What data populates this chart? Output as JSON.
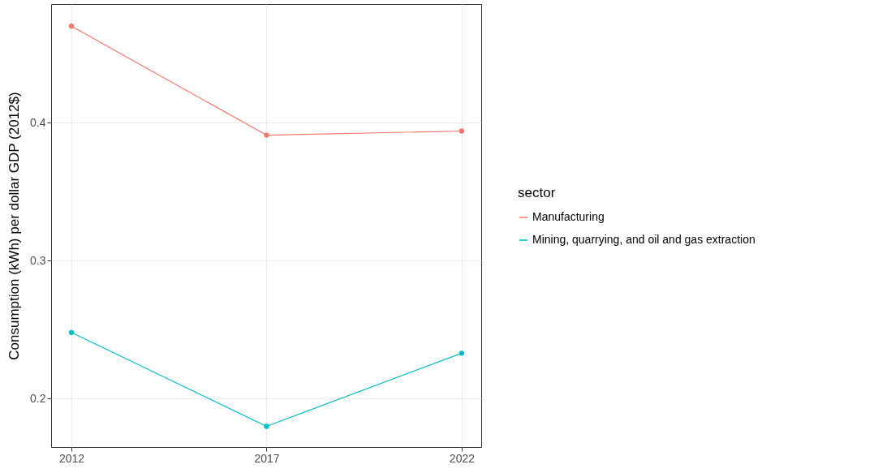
{
  "chart_data": {
    "type": "line",
    "ylabel": "Consumption (kWh) per dollar GDP (2012$)",
    "legend_title": "sector",
    "x": [
      2012,
      2017,
      2022
    ],
    "series": [
      {
        "name": "Manufacturing",
        "color": "#f8766d",
        "values": [
          0.47,
          0.391,
          0.394
        ]
      },
      {
        "name": "Mining, quarrying, and oil and gas extraction",
        "color": "#00bfc4",
        "values": [
          0.248,
          0.18,
          0.233
        ]
      }
    ],
    "xlim": [
      2011.48,
      2022.5
    ],
    "xticks": [
      2012,
      2017,
      2022
    ],
    "ylim": [
      0.165,
      0.486
    ],
    "yticks": [
      {
        "value": 0.2,
        "label": "0.2"
      },
      {
        "value": 0.3,
        "label": "0.3"
      },
      {
        "value": 0.4,
        "label": "0.4"
      }
    ],
    "grid": true,
    "legend": "right",
    "marker": "circle",
    "line_style": "solid"
  }
}
